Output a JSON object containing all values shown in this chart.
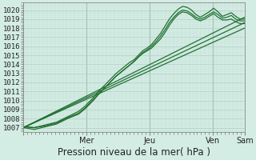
{
  "title": "",
  "xlabel": "Pression niveau de la mer( hPa )",
  "background_color": "#d4ede4",
  "plot_bg_color": "#d4ede4",
  "grid_major_color": "#b0cfc4",
  "grid_minor_color": "#c2ddd6",
  "ylim": [
    1006.5,
    1020.8
  ],
  "yticks": [
    1007,
    1008,
    1009,
    1010,
    1011,
    1012,
    1013,
    1014,
    1015,
    1016,
    1017,
    1018,
    1019,
    1020
  ],
  "line_color": "#1a6b2a",
  "lines": [
    {
      "x": [
        0.0,
        0.05,
        0.1,
        0.15,
        0.2,
        0.25,
        0.28,
        0.3,
        0.32,
        0.34,
        0.36,
        0.38,
        0.4,
        0.42,
        0.44,
        0.46,
        0.48,
        0.5,
        0.52,
        0.54,
        0.56,
        0.58,
        0.6,
        0.62,
        0.64,
        0.66,
        0.68,
        0.7,
        0.72,
        0.74,
        0.76,
        0.78,
        0.8,
        0.82,
        0.84,
        0.86,
        0.88,
        0.9,
        0.92,
        0.94,
        0.96,
        0.98,
        1.0
      ],
      "y": [
        1007.1,
        1007.0,
        1007.3,
        1007.6,
        1008.2,
        1008.8,
        1009.4,
        1009.9,
        1010.4,
        1011.0,
        1011.5,
        1012.0,
        1012.5,
        1013.0,
        1013.4,
        1013.8,
        1014.2,
        1014.5,
        1015.0,
        1015.5,
        1015.8,
        1016.2,
        1016.8,
        1017.4,
        1018.2,
        1019.0,
        1019.6,
        1020.1,
        1020.4,
        1020.3,
        1020.0,
        1019.5,
        1019.2,
        1019.5,
        1019.8,
        1020.2,
        1019.8,
        1019.3,
        1019.5,
        1019.7,
        1019.3,
        1019.0,
        1019.0
      ]
    },
    {
      "x": [
        0.0,
        0.05,
        0.1,
        0.15,
        0.2,
        0.25,
        0.28,
        0.3,
        0.32,
        0.34,
        0.36,
        0.38,
        0.4,
        0.42,
        0.44,
        0.46,
        0.48,
        0.5,
        0.52,
        0.54,
        0.56,
        0.58,
        0.6,
        0.62,
        0.64,
        0.66,
        0.68,
        0.7,
        0.72,
        0.74,
        0.76,
        0.78,
        0.8,
        0.82,
        0.84,
        0.86,
        0.88,
        0.9,
        0.92,
        0.94,
        0.96,
        0.98,
        1.0
      ],
      "y": [
        1007.0,
        1006.8,
        1007.1,
        1007.4,
        1008.0,
        1008.5,
        1009.1,
        1009.6,
        1010.1,
        1010.7,
        1011.2,
        1011.7,
        1012.2,
        1012.7,
        1013.1,
        1013.5,
        1013.9,
        1014.3,
        1014.8,
        1015.3,
        1015.6,
        1016.0,
        1016.5,
        1017.1,
        1017.8,
        1018.6,
        1019.2,
        1019.7,
        1020.0,
        1019.9,
        1019.6,
        1019.2,
        1019.0,
        1019.2,
        1019.5,
        1019.8,
        1019.5,
        1019.1,
        1019.2,
        1019.4,
        1019.0,
        1018.8,
        1018.8
      ]
    },
    {
      "x": [
        0.0,
        0.05,
        0.1,
        0.15,
        0.2,
        0.25,
        0.28,
        0.3,
        0.32,
        0.34,
        0.36,
        0.38,
        0.4,
        0.42,
        0.44,
        0.46,
        0.48,
        0.5,
        0.52,
        0.54,
        0.56,
        0.58,
        0.6,
        0.62,
        0.64,
        0.66,
        0.68,
        0.7,
        0.72,
        0.74,
        0.76,
        0.78,
        0.8,
        0.82,
        0.84,
        0.86,
        0.88,
        0.9,
        0.92,
        0.94,
        0.96,
        0.98,
        1.0
      ],
      "y": [
        1007.1,
        1007.0,
        1007.2,
        1007.5,
        1008.1,
        1008.6,
        1009.2,
        1009.7,
        1010.2,
        1010.7,
        1011.2,
        1011.7,
        1012.2,
        1012.7,
        1013.1,
        1013.5,
        1013.9,
        1014.3,
        1014.8,
        1015.2,
        1015.5,
        1015.8,
        1016.3,
        1016.8,
        1017.5,
        1018.3,
        1019.0,
        1019.5,
        1019.8,
        1019.7,
        1019.4,
        1019.0,
        1018.8,
        1019.0,
        1019.3,
        1019.6,
        1019.2,
        1018.9,
        1018.9,
        1019.0,
        1018.7,
        1018.5,
        1018.5
      ]
    },
    {
      "x": [
        0.0,
        1.0
      ],
      "y": [
        1007.0,
        1019.2
      ]
    },
    {
      "x": [
        0.0,
        1.0
      ],
      "y": [
        1007.0,
        1018.6
      ]
    },
    {
      "x": [
        0.0,
        1.0
      ],
      "y": [
        1007.0,
        1018.0
      ]
    }
  ],
  "vline_positions": [
    0.285,
    0.571,
    0.857
  ],
  "xtick_positions": [
    0.0,
    0.285,
    0.571,
    0.857,
    1.0
  ],
  "xtick_labels": [
    "",
    "Mer",
    "Jeu",
    "Ven",
    "Sam"
  ],
  "xlabel_fontsize": 8.5,
  "ytick_fontsize": 6.5,
  "xtick_fontsize": 7
}
